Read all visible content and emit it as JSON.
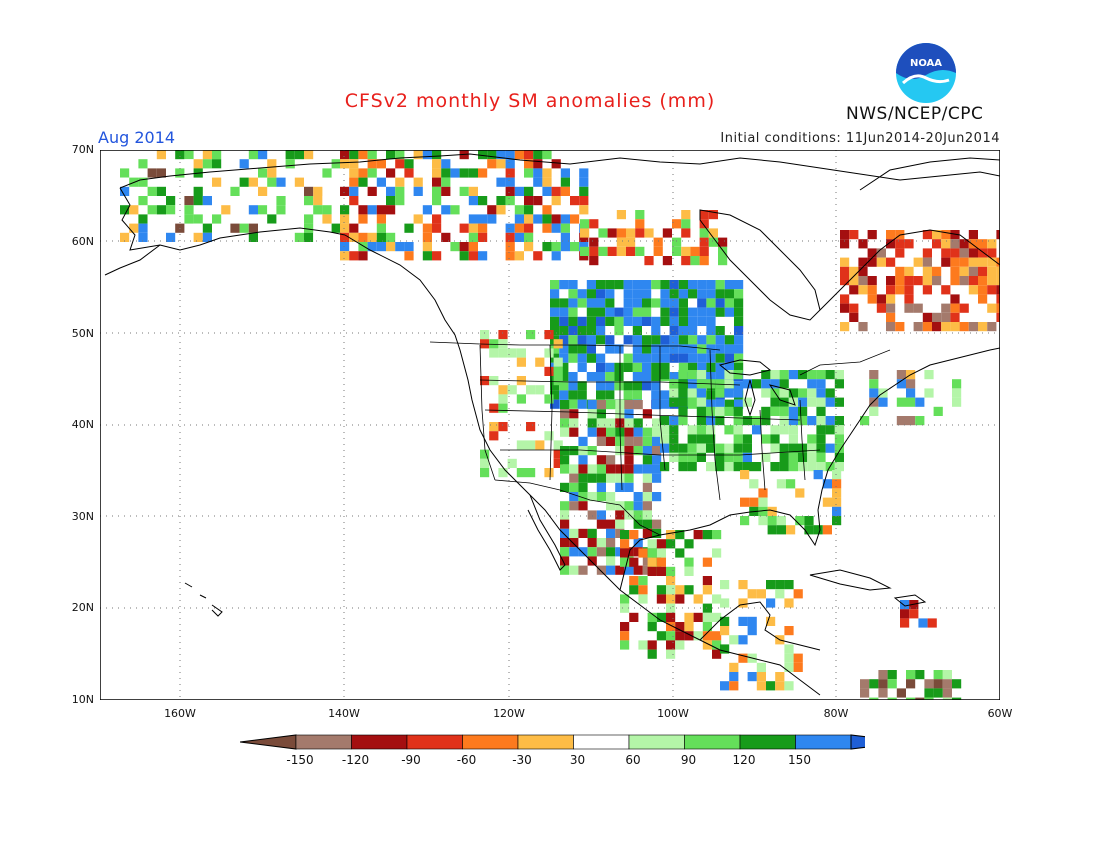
{
  "header": {
    "title": "CFSv2 monthly SM anomalies (mm)",
    "month": "Aug 2014",
    "initial_conditions": "Initial conditions: 11Jun2014-20Jun2014",
    "agency": "NWS/NCEP/CPC",
    "logo_text": "NOAA"
  },
  "map": {
    "lat_labels": [
      "70N",
      "60N",
      "50N",
      "40N",
      "30N",
      "20N",
      "10N"
    ],
    "lon_labels": [
      "160W",
      "140W",
      "120W",
      "100W",
      "80W",
      "60W"
    ],
    "extent": {
      "lon": [
        -172,
        -60
      ],
      "lat": [
        10,
        70
      ]
    }
  },
  "legend": {
    "ticks": [
      "-150",
      "-120",
      "-90",
      "-60",
      "-30",
      "30",
      "60",
      "90",
      "120",
      "150"
    ],
    "colors": [
      "#7a4b3a",
      "#a47a6c",
      "#a40f10",
      "#e0321a",
      "#fd7a1e",
      "#fdbc46",
      "#ffffff",
      "#b4f5a8",
      "#64df5a",
      "#179b1a",
      "#2f87f0",
      "#1f5fd6"
    ]
  },
  "colors": {
    "title": "#e8201c",
    "month": "#2255dd",
    "noaa_blue": "#1e4fbd",
    "noaa_cyan": "#25c8f2"
  }
}
